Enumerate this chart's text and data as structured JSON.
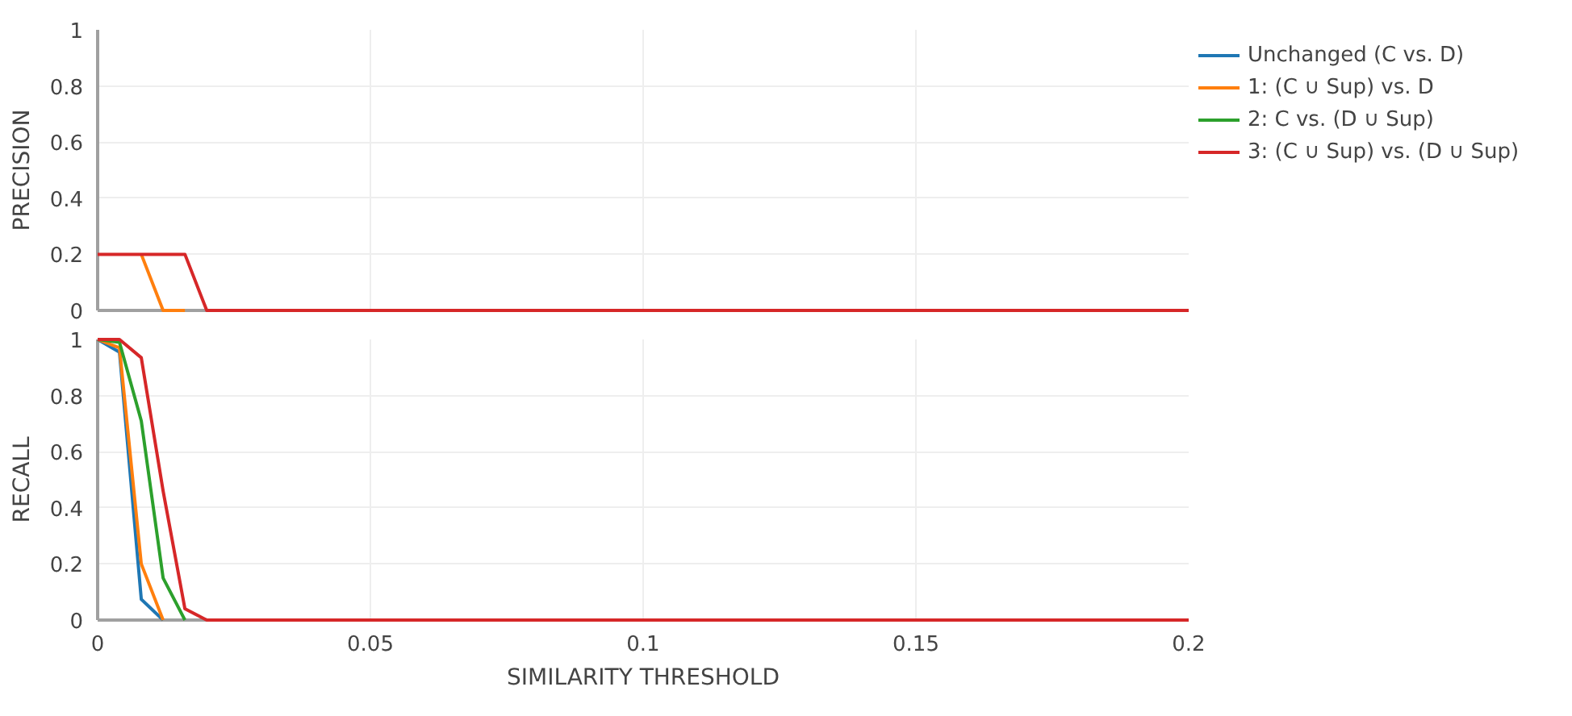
{
  "chart_data": [
    {
      "type": "line",
      "ylabel": "PRECISION",
      "x": [
        0,
        0.004,
        0.008,
        0.012,
        0.016,
        0.02,
        0.2
      ],
      "xlim": [
        0,
        0.2
      ],
      "xticks": [
        0,
        0.05,
        0.1,
        0.15,
        0.2
      ],
      "ylim": [
        0,
        1
      ],
      "yticks": [
        0,
        0.2,
        0.4,
        0.6,
        0.8,
        1
      ],
      "grid": true,
      "legend": "right",
      "tick_labels": "y",
      "line_style": "solid",
      "series": [
        {
          "name": "Unchanged (C vs. D)",
          "color": "#1f77b4",
          "values": [
            null,
            null,
            null,
            null,
            null,
            null,
            null
          ]
        },
        {
          "name": "1: (C ∪ Sup) vs. D",
          "color": "#ff7f0e",
          "values": [
            null,
            null,
            0.2,
            0,
            0,
            null,
            null
          ]
        },
        {
          "name": "2: C vs. (D ∪ Sup)",
          "color": "#2ca02c",
          "values": [
            null,
            null,
            null,
            null,
            null,
            null,
            null
          ]
        },
        {
          "name": "3: (C ∪ Sup) vs. (D ∪ Sup)",
          "color": "#d62728",
          "values": [
            0.2,
            0.2,
            0.2,
            0.2,
            0.2,
            0,
            0
          ]
        }
      ]
    },
    {
      "type": "line",
      "xlabel": "SIMILARITY THRESHOLD",
      "ylabel": "RECALL",
      "x": [
        0,
        0.004,
        0.008,
        0.012,
        0.016,
        0.02,
        0.2
      ],
      "xlim": [
        0,
        0.2
      ],
      "xticks": [
        0,
        0.05,
        0.1,
        0.15,
        0.2
      ],
      "ylim": [
        0,
        1
      ],
      "yticks": [
        0,
        0.2,
        0.4,
        0.6,
        0.8,
        1
      ],
      "grid": true,
      "line_style": "solid",
      "series": [
        {
          "color": "#1f77b4",
          "values": [
            1,
            0.955,
            0.074,
            0,
            null,
            null,
            null
          ]
        },
        {
          "color": "#ff7f0e",
          "values": [
            1,
            0.97,
            0.2,
            0,
            null,
            null,
            null
          ]
        },
        {
          "color": "#2ca02c",
          "values": [
            1,
            0.99,
            0.71,
            0.15,
            0,
            null,
            null
          ]
        },
        {
          "color": "#d62728",
          "values": [
            1,
            1,
            0.935,
            0.46,
            0.04,
            0,
            0
          ]
        }
      ]
    }
  ]
}
